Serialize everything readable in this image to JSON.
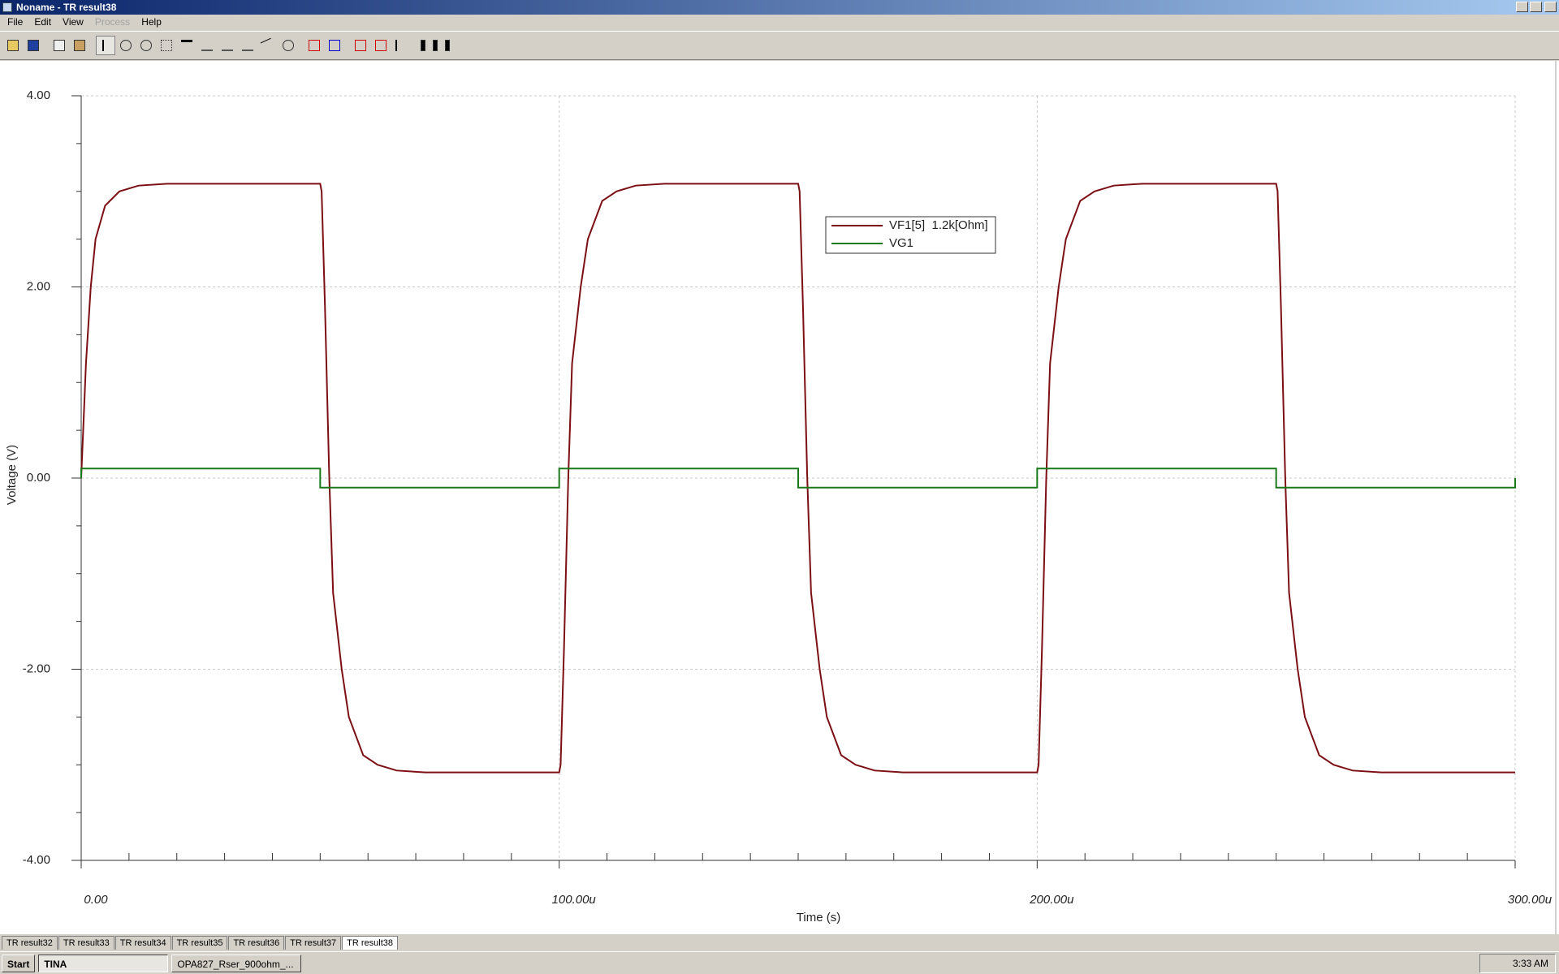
{
  "window": {
    "title": "Noname - TR result38",
    "menu": [
      "File",
      "Edit",
      "View",
      "Process",
      "Help"
    ]
  },
  "tabs": [
    "TR result32",
    "TR result33",
    "TR result34",
    "TR result35",
    "TR result36",
    "TR result37",
    "TR result38"
  ],
  "taskbar": {
    "start": "Start",
    "items": [
      "TINA",
      "OPA827_Rser_900ohm_..."
    ],
    "clock": "3:33 AM"
  },
  "chart_data": {
    "type": "line",
    "xlabel": "Time (s)",
    "ylabel": "Voltage (V)",
    "x": [
      0,
      0,
      1e-06,
      2e-06,
      3e-06,
      5e-06,
      8e-06,
      1.2e-05,
      1.8e-05,
      5e-05,
      5e-05,
      5.03e-05,
      5.1e-05,
      5.19e-05,
      5.27e-05,
      5.45e-05,
      5.6e-05,
      5.9e-05,
      6.2e-05,
      6.6e-05,
      7.2e-05,
      0.0001,
      0.0001,
      0.0001003,
      0.000101,
      0.0001019,
      0.0001027,
      0.0001045,
      0.000106,
      0.000109,
      0.000112,
      0.000116,
      0.000122,
      0.00015,
      0.00015,
      0.0001503,
      0.000151,
      0.0001519,
      0.0001527,
      0.0001545,
      0.000156,
      0.000159,
      0.000162,
      0.000166,
      0.000172,
      0.0002,
      0.0002,
      0.0002003,
      0.000201,
      0.0002019,
      0.0002027,
      0.0002045,
      0.000206,
      0.000209,
      0.000212,
      0.000216,
      0.000222,
      0.00025,
      0.00025,
      0.0002503,
      0.000251,
      0.0002519,
      0.0002527,
      0.0002545,
      0.000256,
      0.000259,
      0.000262,
      0.000266,
      0.000272,
      0.0003,
      0.0003
    ],
    "series": [
      {
        "name": "VF1[5]  1.2k[Ohm]",
        "color": "#7b0f14",
        "values": [
          0,
          0,
          1.2,
          2.0,
          2.5,
          2.85,
          3.0,
          3.06,
          3.08,
          3.08,
          3.08,
          3.0,
          1.8,
          0,
          -1.2,
          -2.0,
          -2.5,
          -2.9,
          -3.0,
          -3.06,
          -3.08,
          -3.08,
          -3.08,
          -3.0,
          -1.8,
          0,
          1.2,
          2.0,
          2.5,
          2.9,
          3.0,
          3.06,
          3.08,
          3.08,
          3.08,
          3.0,
          1.8,
          0,
          -1.2,
          -2.0,
          -2.5,
          -2.9,
          -3.0,
          -3.06,
          -3.08,
          -3.08,
          -3.08,
          -3.0,
          -1.8,
          0,
          1.2,
          2.0,
          2.5,
          2.9,
          3.0,
          3.06,
          3.08,
          3.08,
          3.08,
          3.0,
          1.8,
          0,
          -1.2,
          -2.0,
          -2.5,
          -2.9,
          -3.0,
          -3.06,
          -3.08,
          -3.08,
          -3.08
        ]
      },
      {
        "name": "VG1",
        "color": "#1a7a1a",
        "values": [
          0,
          0.1,
          0.1,
          0.1,
          0.1,
          0.1,
          0.1,
          0.1,
          0.1,
          0.1,
          -0.1,
          -0.1,
          -0.1,
          -0.1,
          -0.1,
          -0.1,
          -0.1,
          -0.1,
          -0.1,
          -0.1,
          -0.1,
          -0.1,
          0.1,
          0.1,
          0.1,
          0.1,
          0.1,
          0.1,
          0.1,
          0.1,
          0.1,
          0.1,
          0.1,
          0.1,
          -0.1,
          -0.1,
          -0.1,
          -0.1,
          -0.1,
          -0.1,
          -0.1,
          -0.1,
          -0.1,
          -0.1,
          -0.1,
          -0.1,
          0.1,
          0.1,
          0.1,
          0.1,
          0.1,
          0.1,
          0.1,
          0.1,
          0.1,
          0.1,
          0.1,
          0.1,
          -0.1,
          -0.1,
          -0.1,
          -0.1,
          -0.1,
          -0.1,
          -0.1,
          -0.1,
          -0.1,
          -0.1,
          -0.1,
          -0.1,
          0
        ]
      }
    ],
    "xlim": [
      0,
      0.0003
    ],
    "ylim": [
      -4,
      4
    ],
    "xticks": [
      {
        "value": 0,
        "label": "0.00"
      },
      {
        "value": 0.0001,
        "label": "100.00u"
      },
      {
        "value": 0.0002,
        "label": "200.00u"
      },
      {
        "value": 0.0003,
        "label": "300.00u"
      }
    ],
    "yticks": [
      {
        "value": -4,
        "label": "-4.00"
      },
      {
        "value": -2,
        "label": "-2.00"
      },
      {
        "value": 0,
        "label": "0.00"
      },
      {
        "value": 2,
        "label": "2.00"
      },
      {
        "value": 4,
        "label": "4.00"
      }
    ],
    "xminorticks": [
      1e-05,
      2e-05,
      3e-05,
      4e-05,
      5e-05,
      6e-05,
      7e-05,
      8e-05,
      9e-05,
      0.00011,
      0.00012,
      0.00013,
      0.00014,
      0.00015,
      0.00016,
      0.00017,
      0.00018,
      0.00019,
      0.00021,
      0.00022,
      0.00023,
      0.00024,
      0.00025,
      0.00026,
      0.00027,
      0.00028,
      0.00029
    ],
    "yminorticks": [
      -3.5,
      -3,
      -2.5,
      -1.5,
      -1,
      -0.5,
      0.5,
      1,
      1.5,
      2.5,
      3,
      3.5
    ],
    "grid": true,
    "legend": "upper center"
  }
}
